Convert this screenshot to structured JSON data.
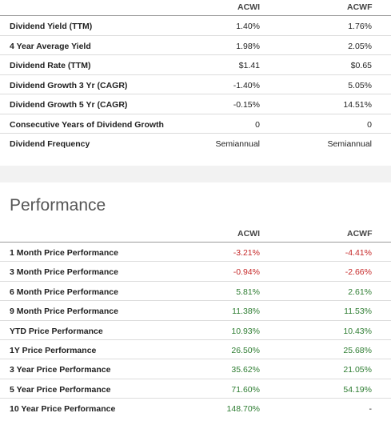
{
  "dividends": {
    "col1": "ACWI",
    "col2": "ACWF",
    "rows": [
      {
        "label": "Dividend Yield (TTM)",
        "v1": "1.40%",
        "v2": "1.76%"
      },
      {
        "label": "4 Year Average Yield",
        "v1": "1.98%",
        "v2": "2.05%"
      },
      {
        "label": "Dividend Rate (TTM)",
        "v1": "$1.41",
        "v2": "$0.65"
      },
      {
        "label": "Dividend Growth 3 Yr (CAGR)",
        "v1": "-1.40%",
        "v2": "5.05%"
      },
      {
        "label": "Dividend Growth 5 Yr (CAGR)",
        "v1": "-0.15%",
        "v2": "14.51%"
      },
      {
        "label": "Consecutive Years of Dividend Growth",
        "v1": "0",
        "v2": "0"
      },
      {
        "label": "Dividend Frequency",
        "v1": "Semiannual",
        "v2": "Semiannual"
      }
    ]
  },
  "performance": {
    "title": "Performance",
    "col1": "ACWI",
    "col2": "ACWF",
    "rows": [
      {
        "label": "1 Month Price Performance",
        "v1": "-3.21%",
        "v2": "-4.41%"
      },
      {
        "label": "3 Month Price Performance",
        "v1": "-0.94%",
        "v2": "-2.66%"
      },
      {
        "label": "6 Month Price Performance",
        "v1": "5.81%",
        "v2": "2.61%"
      },
      {
        "label": "9 Month Price Performance",
        "v1": "11.38%",
        "v2": "11.53%"
      },
      {
        "label": "YTD Price Performance",
        "v1": "10.93%",
        "v2": "10.43%"
      },
      {
        "label": "1Y Price Performance",
        "v1": "26.50%",
        "v2": "25.68%"
      },
      {
        "label": "3 Year Price Performance",
        "v1": "35.62%",
        "v2": "21.05%"
      },
      {
        "label": "5 Year Price Performance",
        "v1": "71.60%",
        "v2": "54.19%"
      },
      {
        "label": "10 Year Price Performance",
        "v1": "148.70%",
        "v2": "-"
      }
    ]
  },
  "colors": {
    "negative": "#c62828",
    "positive": "#2e7d32"
  }
}
